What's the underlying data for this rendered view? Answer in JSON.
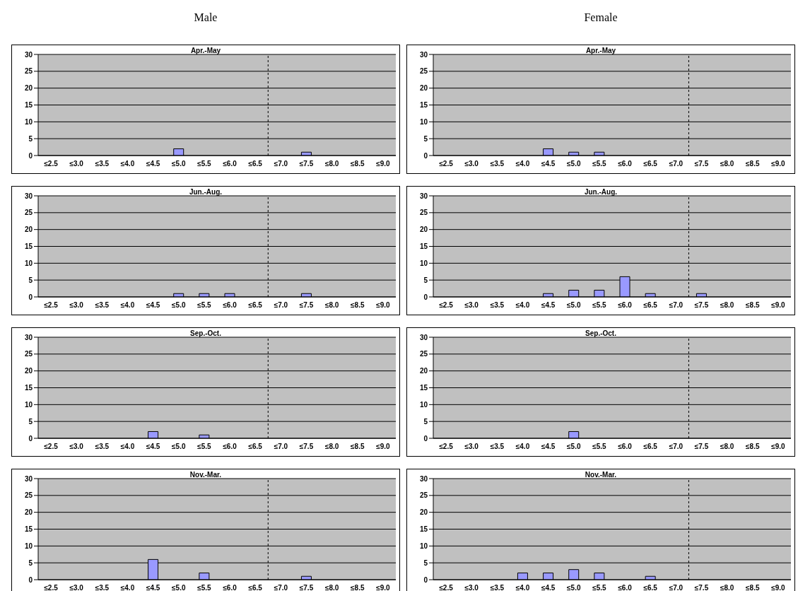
{
  "chart_data": [
    {
      "type": "bar",
      "subtitle": "Male",
      "title": "Apr.-May",
      "categories": [
        "≤2.5",
        "≤3.0",
        "≤3.5",
        "≤4.0",
        "≤4.5",
        "≤5.0",
        "≤5.5",
        "≤6.0",
        "≤6.5",
        "≤7.0",
        "≤7.5",
        "≤8.0",
        "≤8.5",
        "≤9.0"
      ],
      "values": [
        0,
        0,
        0,
        0,
        0,
        2,
        0,
        0,
        0,
        0,
        1,
        0,
        0,
        0
      ],
      "color": "#9999ff",
      "ylim": [
        0,
        30
      ],
      "yticks": [
        0,
        5,
        10,
        15,
        20,
        25,
        30
      ],
      "grid": "y",
      "ref_lines": [
        {
          "axis": "x",
          "value": "≤7.0",
          "color": "#000000",
          "line_style": "dashed"
        }
      ]
    },
    {
      "type": "bar",
      "subtitle": "Female",
      "title": "Apr.-May",
      "categories": [
        "≤2.5",
        "≤3.0",
        "≤3.5",
        "≤4.0",
        "≤4.5",
        "≤5.0",
        "≤5.5",
        "≤6.0",
        "≤6.5",
        "≤7.0",
        "≤7.5",
        "≤8.0",
        "≤8.5",
        "≤9.0"
      ],
      "values": [
        0,
        0,
        0,
        0,
        2,
        1,
        1,
        0,
        0,
        0,
        0,
        0,
        0,
        0
      ],
      "color": "#9999ff",
      "ylim": [
        0,
        30
      ],
      "yticks": [
        0,
        5,
        10,
        15,
        20,
        25,
        30
      ],
      "grid": "y",
      "ref_lines": [
        {
          "axis": "x",
          "value": "≤7.5",
          "color": "#000000",
          "line_style": "dashed"
        }
      ]
    },
    {
      "type": "bar",
      "title": "Jun.-Aug.",
      "categories": [
        "≤2.5",
        "≤3.0",
        "≤3.5",
        "≤4.0",
        "≤4.5",
        "≤5.0",
        "≤5.5",
        "≤6.0",
        "≤6.5",
        "≤7.0",
        "≤7.5",
        "≤8.0",
        "≤8.5",
        "≤9.0"
      ],
      "values": [
        0,
        0,
        0,
        0,
        0,
        1,
        1,
        1,
        0,
        0,
        1,
        0,
        0,
        0
      ],
      "color": "#9999ff",
      "ylim": [
        0,
        30
      ],
      "yticks": [
        0,
        5,
        10,
        15,
        20,
        25,
        30
      ],
      "grid": "y",
      "ref_lines": [
        {
          "axis": "x",
          "value": "≤7.0",
          "color": "#000000",
          "line_style": "dashed"
        }
      ]
    },
    {
      "type": "bar",
      "title": "Jun.-Aug.",
      "categories": [
        "≤2.5",
        "≤3.0",
        "≤3.5",
        "≤4.0",
        "≤4.5",
        "≤5.0",
        "≤5.5",
        "≤6.0",
        "≤6.5",
        "≤7.0",
        "≤7.5",
        "≤8.0",
        "≤8.5",
        "≤9.0"
      ],
      "values": [
        0,
        0,
        0,
        0,
        1,
        2,
        2,
        6,
        1,
        0,
        1,
        0,
        0,
        0
      ],
      "color": "#9999ff",
      "ylim": [
        0,
        30
      ],
      "yticks": [
        0,
        5,
        10,
        15,
        20,
        25,
        30
      ],
      "grid": "y",
      "ref_lines": [
        {
          "axis": "x",
          "value": "≤7.5",
          "color": "#000000",
          "line_style": "dashed"
        }
      ]
    },
    {
      "type": "bar",
      "title": "Sep.-Oct.",
      "categories": [
        "≤2.5",
        "≤3.0",
        "≤3.5",
        "≤4.0",
        "≤4.5",
        "≤5.0",
        "≤5.5",
        "≤6.0",
        "≤6.5",
        "≤7.0",
        "≤7.5",
        "≤8.0",
        "≤8.5",
        "≤9.0"
      ],
      "values": [
        0,
        0,
        0,
        0,
        2,
        0,
        1,
        0,
        0,
        0,
        0,
        0,
        0,
        0
      ],
      "color": "#9999ff",
      "ylim": [
        0,
        30
      ],
      "yticks": [
        0,
        5,
        10,
        15,
        20,
        25,
        30
      ],
      "grid": "y",
      "ref_lines": [
        {
          "axis": "x",
          "value": "≤7.0",
          "color": "#000000",
          "line_style": "dashed"
        }
      ]
    },
    {
      "type": "bar",
      "title": "Sep.-Oct.",
      "categories": [
        "≤2.5",
        "≤3.0",
        "≤3.5",
        "≤4.0",
        "≤4.5",
        "≤5.0",
        "≤5.5",
        "≤6.0",
        "≤6.5",
        "≤7.0",
        "≤7.5",
        "≤8.0",
        "≤8.5",
        "≤9.0"
      ],
      "values": [
        0,
        0,
        0,
        0,
        0,
        2,
        0,
        0,
        0,
        0,
        0,
        0,
        0,
        0
      ],
      "color": "#9999ff",
      "ylim": [
        0,
        30
      ],
      "yticks": [
        0,
        5,
        10,
        15,
        20,
        25,
        30
      ],
      "grid": "y",
      "ref_lines": [
        {
          "axis": "x",
          "value": "≤7.5",
          "color": "#000000",
          "line_style": "dashed"
        }
      ]
    },
    {
      "type": "bar",
      "title": "Nov.-Mar.",
      "categories": [
        "≤2.5",
        "≤3.0",
        "≤3.5",
        "≤4.0",
        "≤4.5",
        "≤5.0",
        "≤5.5",
        "≤6.0",
        "≤6.5",
        "≤7.0",
        "≤7.5",
        "≤8.0",
        "≤8.5",
        "≤9.0"
      ],
      "values": [
        0,
        0,
        0,
        0,
        6,
        0,
        2,
        0,
        0,
        0,
        1,
        0,
        0,
        0
      ],
      "color": "#9999ff",
      "ylim": [
        0,
        30
      ],
      "yticks": [
        0,
        5,
        10,
        15,
        20,
        25,
        30
      ],
      "grid": "y",
      "ref_lines": [
        {
          "axis": "x",
          "value": "≤7.0",
          "color": "#000000",
          "line_style": "dashed"
        }
      ]
    },
    {
      "type": "bar",
      "title": "Nov.-Mar.",
      "categories": [
        "≤2.5",
        "≤3.0",
        "≤3.5",
        "≤4.0",
        "≤4.5",
        "≤5.0",
        "≤5.5",
        "≤6.0",
        "≤6.5",
        "≤7.0",
        "≤7.5",
        "≤8.0",
        "≤8.5",
        "≤9.0"
      ],
      "values": [
        0,
        0,
        0,
        2,
        2,
        3,
        2,
        0,
        1,
        0,
        0,
        0,
        0,
        0
      ],
      "color": "#9999ff",
      "ylim": [
        0,
        30
      ],
      "yticks": [
        0,
        5,
        10,
        15,
        20,
        25,
        30
      ],
      "grid": "y",
      "ref_lines": [
        {
          "axis": "x",
          "value": "≤7.5",
          "color": "#000000",
          "line_style": "dashed"
        }
      ]
    }
  ]
}
